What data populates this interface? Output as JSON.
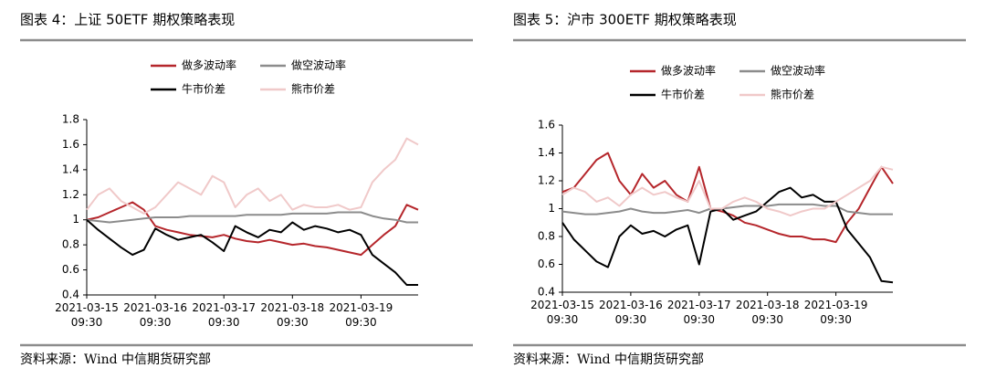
{
  "chart_data": [
    {
      "type": "line",
      "title": "图表 4：上证 50ETF 期权策略表现",
      "source": "资料来源：Wind 中信期货研究部",
      "categories": [
        "2021-03-15 09:30",
        null,
        null,
        null,
        null,
        null,
        "2021-03-16 09:30",
        null,
        null,
        null,
        null,
        null,
        "2021-03-17 09:30",
        null,
        null,
        null,
        null,
        null,
        "2021-03-18 09:30",
        null,
        null,
        null,
        null,
        null,
        "2021-03-19 09:30",
        null,
        null,
        null,
        null,
        null
      ],
      "ylim": [
        0.4,
        1.8
      ],
      "yticks": [
        0.4,
        0.6,
        0.8,
        1,
        1.2,
        1.4,
        1.6,
        1.8
      ],
      "grid": false,
      "series": [
        {
          "name": "做多波动率",
          "color": "#b5262b",
          "values": [
            1.0,
            1.02,
            1.06,
            1.1,
            1.14,
            1.08,
            0.95,
            0.92,
            0.9,
            0.88,
            0.87,
            0.86,
            0.88,
            0.85,
            0.83,
            0.82,
            0.84,
            0.82,
            0.8,
            0.81,
            0.79,
            0.78,
            0.76,
            0.74,
            0.72,
            0.8,
            0.88,
            0.95,
            1.12,
            1.08
          ]
        },
        {
          "name": "做空波动率",
          "color": "#8c8c8c",
          "values": [
            1.0,
            0.99,
            0.98,
            0.99,
            1.0,
            1.01,
            1.02,
            1.02,
            1.02,
            1.03,
            1.03,
            1.03,
            1.03,
            1.03,
            1.04,
            1.04,
            1.04,
            1.04,
            1.05,
            1.05,
            1.05,
            1.05,
            1.06,
            1.06,
            1.06,
            1.03,
            1.01,
            1.0,
            0.98,
            0.98
          ]
        },
        {
          "name": "牛市价差",
          "color": "#000000",
          "values": [
            1.0,
            0.92,
            0.85,
            0.78,
            0.72,
            0.76,
            0.93,
            0.88,
            0.84,
            0.86,
            0.88,
            0.82,
            0.75,
            0.95,
            0.9,
            0.86,
            0.92,
            0.9,
            0.98,
            0.92,
            0.95,
            0.93,
            0.9,
            0.92,
            0.88,
            0.72,
            0.65,
            0.58,
            0.48,
            0.48
          ]
        },
        {
          "name": "熊市价差",
          "color": "#f0c9c9",
          "values": [
            1.08,
            1.2,
            1.25,
            1.15,
            1.1,
            1.05,
            1.1,
            1.2,
            1.3,
            1.25,
            1.2,
            1.35,
            1.3,
            1.1,
            1.2,
            1.25,
            1.15,
            1.2,
            1.08,
            1.12,
            1.1,
            1.1,
            1.12,
            1.08,
            1.1,
            1.3,
            1.4,
            1.48,
            1.65,
            1.6
          ]
        }
      ]
    },
    {
      "type": "line",
      "title": "图表 5：沪市 300ETF 期权策略表现",
      "source": "资料来源：Wind 中信期货研究部",
      "categories": [
        "2021-03-15 09:30",
        null,
        null,
        null,
        null,
        null,
        "2021-03-16 09:30",
        null,
        null,
        null,
        null,
        null,
        "2021-03-17 09:30",
        null,
        null,
        null,
        null,
        null,
        "2021-03-18 09:30",
        null,
        null,
        null,
        null,
        null,
        "2021-03-19 09:30",
        null,
        null,
        null,
        null,
        null
      ],
      "ylim": [
        0.4,
        1.6
      ],
      "yticks": [
        0.4,
        0.6,
        0.8,
        1,
        1.2,
        1.4,
        1.6
      ],
      "grid": false,
      "series": [
        {
          "name": "做多波动率",
          "color": "#b5262b",
          "values": [
            1.12,
            1.15,
            1.25,
            1.35,
            1.4,
            1.2,
            1.1,
            1.25,
            1.15,
            1.2,
            1.1,
            1.05,
            1.3,
            1.0,
            0.98,
            0.95,
            0.9,
            0.88,
            0.85,
            0.82,
            0.8,
            0.8,
            0.78,
            0.78,
            0.76,
            0.9,
            1.0,
            1.15,
            1.3,
            1.18
          ]
        },
        {
          "name": "做空波动率",
          "color": "#8c8c8c",
          "values": [
            0.98,
            0.97,
            0.96,
            0.96,
            0.97,
            0.98,
            1.0,
            0.98,
            0.97,
            0.97,
            0.98,
            0.99,
            0.97,
            1.0,
            1.0,
            1.01,
            1.02,
            1.02,
            1.02,
            1.03,
            1.03,
            1.03,
            1.03,
            1.02,
            1.02,
            0.98,
            0.97,
            0.96,
            0.96,
            0.96
          ]
        },
        {
          "name": "牛市价差",
          "color": "#000000",
          "values": [
            0.9,
            0.78,
            0.7,
            0.62,
            0.58,
            0.8,
            0.88,
            0.82,
            0.84,
            0.8,
            0.85,
            0.88,
            0.6,
            0.98,
            1.0,
            0.92,
            0.95,
            0.98,
            1.05,
            1.12,
            1.15,
            1.08,
            1.1,
            1.05,
            1.05,
            0.85,
            0.75,
            0.65,
            0.48,
            0.47
          ]
        },
        {
          "name": "熊市价差",
          "color": "#f0c9c9",
          "values": [
            1.1,
            1.15,
            1.12,
            1.05,
            1.08,
            1.02,
            1.1,
            1.15,
            1.1,
            1.12,
            1.08,
            1.05,
            1.2,
            1.0,
            1.0,
            1.05,
            1.08,
            1.05,
            1.0,
            0.98,
            0.95,
            0.98,
            1.0,
            1.0,
            1.05,
            1.1,
            1.15,
            1.2,
            1.3,
            1.28
          ]
        }
      ]
    }
  ]
}
